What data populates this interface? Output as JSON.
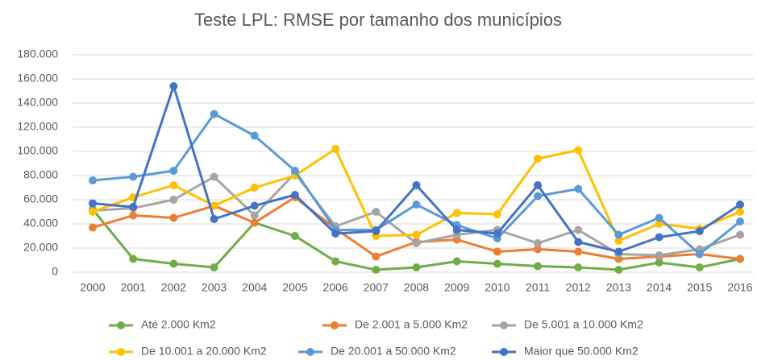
{
  "chart_data": {
    "type": "line",
    "title": "Teste LPL: RMSE por tamanho dos municípios",
    "categories": [
      "2000",
      "2001",
      "2002",
      "2003",
      "2004",
      "2005",
      "2006",
      "2007",
      "2008",
      "2009",
      "2010",
      "2011",
      "2012",
      "2013",
      "2014",
      "2015",
      "2016"
    ],
    "series": [
      {
        "name": "Até 2.000 Km2",
        "color": "#70ad47",
        "values": [
          52000,
          11000,
          7000,
          4000,
          41000,
          30000,
          9000,
          2000,
          4000,
          9000,
          7000,
          5000,
          4000,
          2000,
          8000,
          4000,
          11000
        ]
      },
      {
        "name": "De 2.001 a 5.000 Km2",
        "color": "#ed7d31",
        "values": [
          37000,
          47000,
          45000,
          55000,
          41000,
          62000,
          36000,
          13000,
          25000,
          27000,
          17000,
          19000,
          17000,
          11000,
          13000,
          15000,
          11000
        ]
      },
      {
        "name": "De 5.001 a 10.000 Km2",
        "color": "#a5a5a5",
        "values": [
          51000,
          53000,
          60000,
          79000,
          47000,
          82000,
          38000,
          50000,
          24000,
          31000,
          35000,
          24000,
          35000,
          15000,
          14000,
          19000,
          31000
        ]
      },
      {
        "name": "De 10.001 a 20.000 Km2",
        "color": "#ffc000",
        "values": [
          50000,
          62000,
          72000,
          55000,
          70000,
          80000,
          102000,
          30000,
          31000,
          49000,
          48000,
          94000,
          101000,
          26000,
          40000,
          36000,
          50000
        ]
      },
      {
        "name": "De 20.001 a 50.000 Km2",
        "color": "#5b9bd5",
        "values": [
          76000,
          79000,
          84000,
          131000,
          113000,
          84000,
          35000,
          35000,
          56000,
          39000,
          28000,
          63000,
          69000,
          31000,
          45000,
          15000,
          42000
        ]
      },
      {
        "name": "Maior que 50.000 Km2",
        "color": "#4472c4",
        "values": [
          57000,
          54000,
          154000,
          44000,
          55000,
          64000,
          32000,
          34000,
          72000,
          35000,
          32000,
          72000,
          25000,
          17000,
          29000,
          34000,
          56000
        ]
      }
    ],
    "ylim": [
      0,
      180000
    ],
    "yticks": [
      0,
      {
        "value": 20000,
        "label": "20.000"
      },
      {
        "value": 40000,
        "label": "40.000"
      },
      {
        "value": 60000,
        "label": "60.000"
      },
      {
        "value": 80000,
        "label": "80.000"
      },
      {
        "value": 100000,
        "label": "100.000"
      },
      {
        "value": 120000,
        "label": "120.000"
      },
      {
        "value": 140000,
        "label": "140.000"
      },
      {
        "value": 160000,
        "label": "160.000"
      },
      {
        "value": 180000,
        "label": "180.000"
      }
    ],
    "grid": true,
    "legend": "bottom"
  }
}
